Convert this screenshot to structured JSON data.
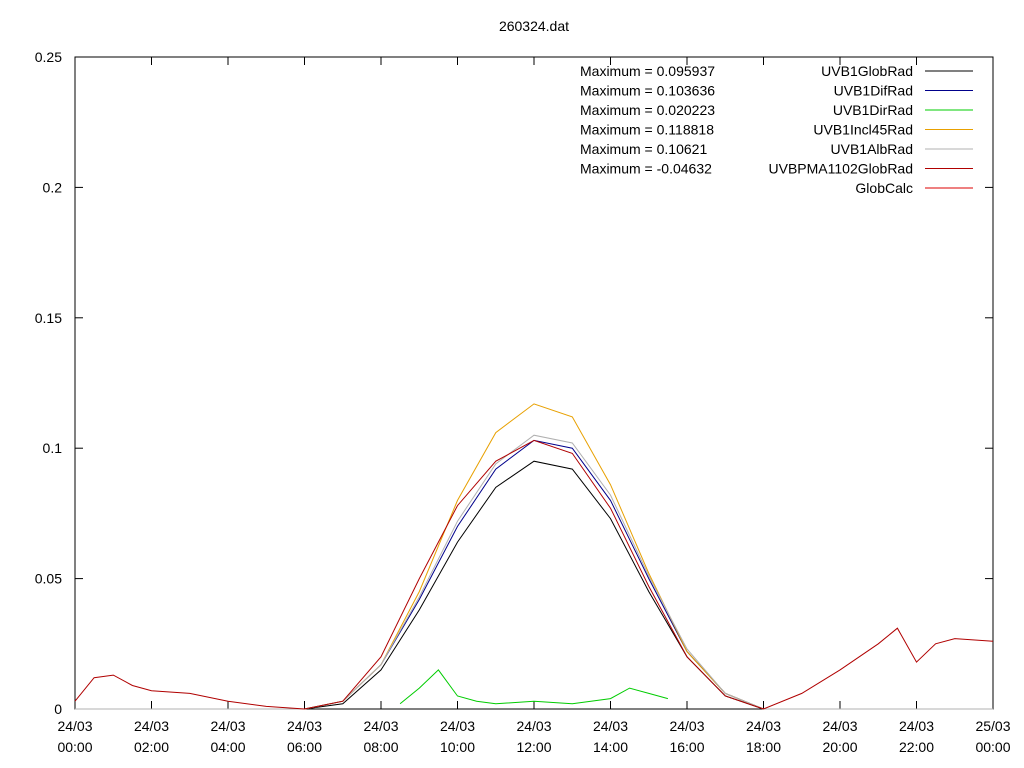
{
  "chart_data": {
    "type": "line",
    "title": "260324.dat",
    "xlabel": "",
    "ylabel": "",
    "x_unit": "hours since 24/03 00:00",
    "xlim": [
      0,
      24
    ],
    "ylim": [
      0,
      0.25
    ],
    "y_ticks": [
      {
        "value": 0,
        "label": "0"
      },
      {
        "value": 0.05,
        "label": "0.05"
      },
      {
        "value": 0.1,
        "label": "0.1"
      },
      {
        "value": 0.15,
        "label": "0.15"
      },
      {
        "value": 0.2,
        "label": "0.2"
      },
      {
        "value": 0.25,
        "label": "0.25"
      }
    ],
    "x_ticks": [
      {
        "value": 0,
        "date": "24/03",
        "time": "00:00"
      },
      {
        "value": 2,
        "date": "24/03",
        "time": "02:00"
      },
      {
        "value": 4,
        "date": "24/03",
        "time": "04:00"
      },
      {
        "value": 6,
        "date": "24/03",
        "time": "06:00"
      },
      {
        "value": 8,
        "date": "24/03",
        "time": "08:00"
      },
      {
        "value": 10,
        "date": "24/03",
        "time": "10:00"
      },
      {
        "value": 12,
        "date": "24/03",
        "time": "12:00"
      },
      {
        "value": 14,
        "date": "24/03",
        "time": "14:00"
      },
      {
        "value": 16,
        "date": "24/03",
        "time": "16:00"
      },
      {
        "value": 18,
        "date": "24/03",
        "time": "18:00"
      },
      {
        "value": 20,
        "date": "24/03",
        "time": "20:00"
      },
      {
        "value": 22,
        "date": "24/03",
        "time": "22:00"
      },
      {
        "value": 24,
        "date": "25/03",
        "time": "00:00"
      }
    ],
    "grid": false,
    "legend_position": "top-right",
    "annotations": [
      "Maximum = 0.095937",
      "Maximum = 0.103636",
      "Maximum = 0.020223",
      "Maximum = 0.118818",
      "Maximum = 0.10621",
      "Maximum = -0.04632"
    ],
    "series": [
      {
        "name": "UVB1GlobRad",
        "color": "#000000",
        "x": [
          0,
          6,
          7,
          8,
          9,
          10,
          11,
          12,
          13,
          14,
          15,
          16,
          17,
          18,
          24
        ],
        "y": [
          0,
          0,
          0.002,
          0.015,
          0.038,
          0.064,
          0.085,
          0.095,
          0.092,
          0.073,
          0.045,
          0.02,
          0.005,
          0,
          0
        ]
      },
      {
        "name": "UVB1DifRad",
        "color": "#00008b",
        "x": [
          0,
          6,
          7,
          8,
          9,
          10,
          11,
          12,
          13,
          14,
          15,
          16,
          17,
          18,
          24
        ],
        "y": [
          0,
          0,
          0.003,
          0.017,
          0.042,
          0.07,
          0.092,
          0.103,
          0.1,
          0.08,
          0.05,
          0.022,
          0.006,
          0,
          0
        ]
      },
      {
        "name": "UVB1DirRad",
        "color": "#00cc00",
        "x": [
          8.5,
          9,
          9.5,
          10,
          10.5,
          11,
          12,
          13,
          14,
          14.5,
          15,
          15.5
        ],
        "y": [
          0.002,
          0.008,
          0.015,
          0.005,
          0.003,
          0.002,
          0.003,
          0.002,
          0.004,
          0.008,
          0.006,
          0.004
        ]
      },
      {
        "name": "UVB1Incl45Rad",
        "color": "#e8a000",
        "x": [
          0,
          6,
          7,
          8,
          9,
          10,
          11,
          12,
          13,
          14,
          15,
          16,
          17,
          18,
          24
        ],
        "y": [
          0,
          0,
          0.003,
          0.017,
          0.045,
          0.08,
          0.106,
          0.117,
          0.112,
          0.086,
          0.052,
          0.022,
          0.006,
          0,
          0
        ]
      },
      {
        "name": "UVB1AlbRad",
        "color": "#b0b0b0",
        "x": [
          0,
          6,
          7,
          8,
          9,
          10,
          11,
          12,
          13,
          14,
          15,
          16,
          17,
          18,
          24
        ],
        "y": [
          0,
          0,
          0.003,
          0.017,
          0.043,
          0.072,
          0.094,
          0.105,
          0.102,
          0.082,
          0.051,
          0.023,
          0.006,
          0,
          0
        ]
      },
      {
        "name": "UVBPMA1102GlobRad",
        "color": "#b00000",
        "x": [
          0,
          0.5,
          1,
          1.5,
          2,
          3,
          4,
          5,
          6,
          7,
          8,
          9,
          10,
          11,
          12,
          13,
          14,
          15,
          16,
          17,
          18,
          19,
          20,
          21,
          21.5,
          22,
          22.5,
          23,
          24
        ],
        "y": [
          0.003,
          0.012,
          0.013,
          0.009,
          0.007,
          0.006,
          0.003,
          0.001,
          0,
          0.003,
          0.02,
          0.05,
          0.078,
          0.095,
          0.103,
          0.098,
          0.077,
          0.047,
          0.02,
          0.005,
          0,
          0.006,
          0.015,
          0.025,
          0.031,
          0.018,
          0.025,
          0.027,
          0.026
        ]
      },
      {
        "name": "GlobCalc",
        "color": "#dd0000",
        "x": [],
        "y": []
      }
    ]
  }
}
